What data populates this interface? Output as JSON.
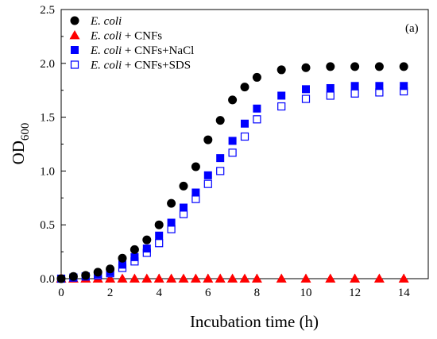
{
  "chart_data": {
    "type": "scatter",
    "xlabel": "Incubation time (h)",
    "ylabel": "OD",
    "ylabel_sub": "600",
    "panel_label": "(a)",
    "xlim": [
      0,
      15
    ],
    "ylim": [
      0,
      2.5
    ],
    "x_ticks": [
      "0",
      "2",
      "4",
      "6",
      "8",
      "10",
      "12",
      "14"
    ],
    "y_ticks": [
      "0.0",
      "0.5",
      "1.0",
      "1.5",
      "2.0",
      "2.5"
    ],
    "legend_position": "top-left",
    "series": [
      {
        "name": "E. coli",
        "name_italic": "E. coli",
        "name_suffix": "",
        "marker": "circle-filled",
        "color": "#000000",
        "x": [
          0,
          0.5,
          1,
          1.5,
          2,
          2.5,
          3,
          3.5,
          4,
          4.5,
          5,
          5.5,
          6,
          6.5,
          7,
          7.5,
          8,
          9,
          10,
          11,
          12,
          13,
          14
        ],
        "y": [
          0.0,
          0.02,
          0.03,
          0.06,
          0.09,
          0.19,
          0.27,
          0.36,
          0.5,
          0.7,
          0.86,
          1.04,
          1.29,
          1.47,
          1.66,
          1.78,
          1.87,
          1.94,
          1.96,
          1.97,
          1.97,
          1.97,
          1.97
        ]
      },
      {
        "name": "E. coli + CNFs",
        "name_italic": "E. coli",
        "name_suffix": " + CNFs",
        "marker": "triangle-filled",
        "color": "#ff0000",
        "x": [
          0,
          0.5,
          1,
          1.5,
          2,
          2.5,
          3,
          3.5,
          4,
          4.5,
          5,
          5.5,
          6,
          6.5,
          7,
          7.5,
          8,
          9,
          10,
          11,
          12,
          13,
          14
        ],
        "y": [
          0.0,
          0.0,
          0.0,
          0.0,
          0.0,
          0.0,
          0.0,
          0.0,
          0.0,
          0.0,
          0.0,
          0.0,
          0.0,
          0.0,
          0.0,
          0.0,
          0.0,
          0.0,
          0.0,
          0.0,
          0.0,
          0.0,
          0.0
        ]
      },
      {
        "name": "E. coli + CNFs+NaCl",
        "name_italic": "E. coli",
        "name_suffix": " + CNFs+NaCl",
        "marker": "square-filled",
        "color": "#0000ff",
        "x": [
          0,
          0.5,
          1,
          1.5,
          2,
          2.5,
          3,
          3.5,
          4,
          4.5,
          5,
          5.5,
          6,
          6.5,
          7,
          7.5,
          8,
          9,
          10,
          11,
          12,
          13,
          14
        ],
        "y": [
          0.0,
          0.01,
          0.02,
          0.04,
          0.06,
          0.13,
          0.2,
          0.28,
          0.4,
          0.52,
          0.66,
          0.8,
          0.96,
          1.12,
          1.28,
          1.44,
          1.58,
          1.7,
          1.76,
          1.77,
          1.79,
          1.79,
          1.79
        ]
      },
      {
        "name": "E. coli + CNFs+SDS",
        "name_italic": "E. coli",
        "name_suffix": " + CNFs+SDS",
        "marker": "square-open",
        "color": "#0000ff",
        "x": [
          0,
          0.5,
          1,
          1.5,
          2,
          2.5,
          3,
          3.5,
          4,
          4.5,
          5,
          5.5,
          6,
          6.5,
          7,
          7.5,
          8,
          9,
          10,
          11,
          12,
          13,
          14
        ],
        "y": [
          0.0,
          0.01,
          0.02,
          0.03,
          0.05,
          0.1,
          0.16,
          0.24,
          0.33,
          0.46,
          0.6,
          0.74,
          0.88,
          1.0,
          1.17,
          1.32,
          1.48,
          1.6,
          1.67,
          1.7,
          1.72,
          1.73,
          1.74
        ]
      }
    ]
  }
}
